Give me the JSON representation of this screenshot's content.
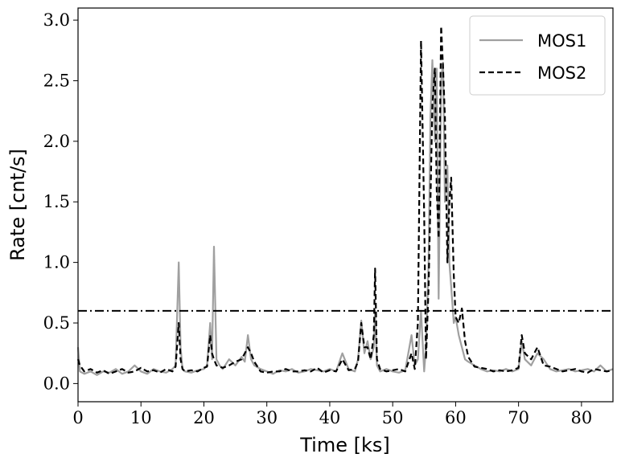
{
  "chart_data": {
    "type": "line",
    "xlabel": "Time [ks]",
    "ylabel": "Rate [cnt/s]",
    "x": [
      0,
      0.3,
      1,
      2,
      3,
      4,
      5,
      6,
      7,
      8,
      9,
      10,
      11,
      12,
      13,
      14,
      15,
      15.5,
      16,
      16.3,
      16.6,
      17,
      18,
      19,
      20,
      20.5,
      21,
      21.3,
      21.6,
      22,
      22.5,
      23,
      24,
      25,
      26,
      26.5,
      27,
      27.5,
      28,
      29,
      30,
      31,
      32,
      33,
      34,
      35,
      36,
      37,
      38,
      39,
      40,
      41,
      42,
      43,
      44,
      44.5,
      45,
      45.5,
      46,
      46.5,
      47,
      47.2,
      47.5,
      48,
      49,
      50,
      51,
      52,
      53,
      53.5,
      54,
      54.5,
      55,
      55.3,
      55.7,
      56,
      56.3,
      56.7,
      57,
      57.3,
      57.7,
      58,
      58.3,
      58.7,
      59,
      59.3,
      59.7,
      60,
      60.5,
      61,
      61.5,
      62,
      63,
      64,
      65,
      66,
      67,
      68,
      69,
      70,
      70.5,
      71,
      72,
      73,
      74,
      75,
      76,
      77,
      78,
      79,
      80,
      81,
      82,
      83,
      84,
      85
    ],
    "series": [
      {
        "name": "MOS1",
        "color": "#a0a0a0",
        "linestyle": "solid",
        "values": [
          0.3,
          0.1,
          0.08,
          0.1,
          0.07,
          0.1,
          0.09,
          0.12,
          0.08,
          0.1,
          0.15,
          0.1,
          0.08,
          0.12,
          0.1,
          0.09,
          0.12,
          0.15,
          1.0,
          0.3,
          0.12,
          0.1,
          0.09,
          0.11,
          0.12,
          0.15,
          0.5,
          0.2,
          1.13,
          0.2,
          0.15,
          0.12,
          0.2,
          0.15,
          0.22,
          0.18,
          0.4,
          0.2,
          0.15,
          0.12,
          0.1,
          0.08,
          0.11,
          0.1,
          0.12,
          0.09,
          0.1,
          0.12,
          0.11,
          0.1,
          0.12,
          0.1,
          0.25,
          0.12,
          0.1,
          0.2,
          0.52,
          0.25,
          0.35,
          0.2,
          0.3,
          0.6,
          0.15,
          0.1,
          0.12,
          0.1,
          0.09,
          0.11,
          0.4,
          0.15,
          0.2,
          0.6,
          0.1,
          0.3,
          1.0,
          2.2,
          2.67,
          2.0,
          2.6,
          0.7,
          2.5,
          2.65,
          1.5,
          1.8,
          1.0,
          0.8,
          0.5,
          0.55,
          0.4,
          0.3,
          0.2,
          0.18,
          0.15,
          0.12,
          0.1,
          0.11,
          0.1,
          0.12,
          0.1,
          0.12,
          0.35,
          0.2,
          0.15,
          0.25,
          0.2,
          0.12,
          0.1,
          0.11,
          0.12,
          0.1,
          0.11,
          0.12,
          0.1,
          0.15,
          0.1,
          0.12
        ]
      },
      {
        "name": "MOS2",
        "color": "#000000",
        "linestyle": "dashed",
        "values": [
          0.2,
          0.15,
          0.1,
          0.12,
          0.09,
          0.11,
          0.08,
          0.1,
          0.12,
          0.09,
          0.1,
          0.13,
          0.1,
          0.11,
          0.09,
          0.12,
          0.1,
          0.14,
          0.5,
          0.2,
          0.12,
          0.1,
          0.11,
          0.1,
          0.13,
          0.14,
          0.4,
          0.25,
          0.2,
          0.15,
          0.14,
          0.13,
          0.15,
          0.18,
          0.2,
          0.25,
          0.3,
          0.25,
          0.18,
          0.1,
          0.09,
          0.1,
          0.1,
          0.12,
          0.1,
          0.1,
          0.11,
          0.1,
          0.13,
          0.09,
          0.11,
          0.1,
          0.2,
          0.11,
          0.12,
          0.18,
          0.5,
          0.3,
          0.3,
          0.2,
          0.4,
          0.95,
          0.2,
          0.12,
          0.1,
          0.11,
          0.12,
          0.1,
          0.25,
          0.12,
          0.5,
          2.83,
          1.4,
          0.2,
          0.8,
          1.5,
          2.3,
          2.6,
          1.6,
          1.2,
          2.95,
          2.6,
          2.2,
          1.0,
          1.5,
          1.7,
          0.9,
          0.55,
          0.5,
          0.62,
          0.35,
          0.22,
          0.14,
          0.13,
          0.12,
          0.1,
          0.11,
          0.1,
          0.11,
          0.13,
          0.4,
          0.25,
          0.2,
          0.3,
          0.15,
          0.14,
          0.12,
          0.1,
          0.11,
          0.12,
          0.1,
          0.09,
          0.12,
          0.11,
          0.1,
          0.11
        ]
      }
    ],
    "hline": 0.6,
    "hline_color": "#000000",
    "xlim": [
      0,
      85
    ],
    "ylim": [
      -0.15,
      3.1
    ],
    "xticks": [
      0,
      10,
      20,
      30,
      40,
      50,
      60,
      70,
      80
    ],
    "yticks": [
      {
        "value": 0,
        "label": "0.0"
      },
      0.5,
      {
        "value": 1,
        "label": "1.0"
      },
      1.5,
      {
        "value": 2,
        "label": "2.0"
      },
      2.5,
      {
        "value": 3,
        "label": "3.0"
      }
    ],
    "legend": "upper right",
    "grid": false
  }
}
